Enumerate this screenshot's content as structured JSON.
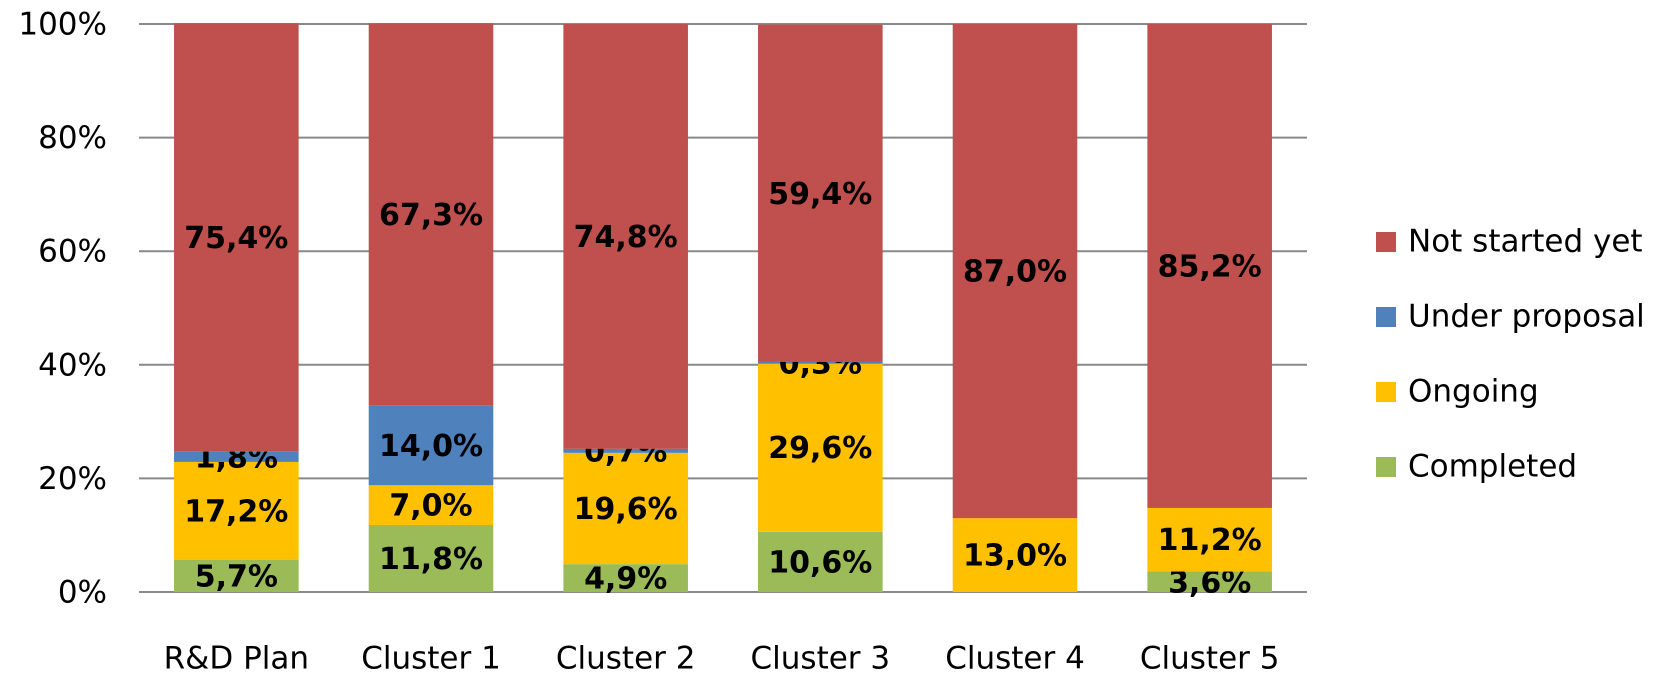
{
  "chart_data": {
    "type": "stacked_bar",
    "categories": [
      "R&D Plan",
      "Cluster 1",
      "Cluster 2",
      "Cluster 3",
      "Cluster 4",
      "Cluster 5"
    ],
    "series": [
      {
        "name": "Completed",
        "color": "#9bbb59",
        "values": [
          5.7,
          11.8,
          4.9,
          10.6,
          0,
          3.6
        ],
        "value_labels": [
          "5,7%",
          "11,8%",
          "4,9%",
          "10,6%",
          null,
          "3,6%"
        ]
      },
      {
        "name": "Ongoing",
        "color": "#ffc000",
        "values": [
          17.2,
          7.0,
          19.6,
          29.6,
          13.0,
          11.2
        ],
        "value_labels": [
          "17,2%",
          "7,0%",
          "19,6%",
          "29,6%",
          "13,0%",
          "11,2%"
        ]
      },
      {
        "name": "Under proposal",
        "color": "#4f81bd",
        "values": [
          1.8,
          14.0,
          0.7,
          0.3,
          0,
          0
        ],
        "value_labels": [
          "1,8%",
          "14,0%",
          "0,7%",
          "0,3%",
          null,
          null
        ]
      },
      {
        "name": "Not started yet",
        "color": "#c0504d",
        "values": [
          75.4,
          67.3,
          74.8,
          59.4,
          87.0,
          85.2
        ],
        "value_labels": [
          "75,4%",
          "67,3%",
          "74,8%",
          "59,4%",
          "87,0%",
          "85,2%"
        ]
      }
    ],
    "ylim": [
      0,
      100
    ],
    "yticks": [
      {
        "value": 0,
        "label": "0%"
      },
      {
        "value": 20,
        "label": "20%"
      },
      {
        "value": 40,
        "label": "40%"
      },
      {
        "value": 60,
        "label": "60%"
      },
      {
        "value": 80,
        "label": "80%"
      },
      {
        "value": 100,
        "label": "100%"
      }
    ],
    "grid": true,
    "legend": "right"
  }
}
